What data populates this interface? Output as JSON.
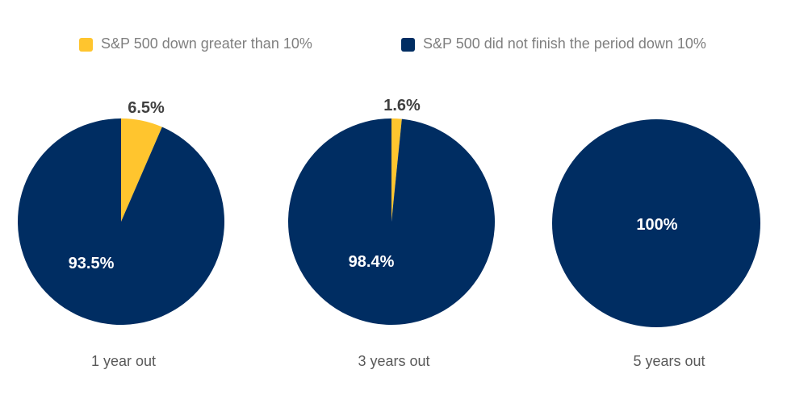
{
  "chart_data": {
    "type": "pie",
    "legend": [
      {
        "label": "S&P 500 down greater than 10%",
        "color": "#FFC52E"
      },
      {
        "label": "S&P 500 did not finish the period down 10%",
        "color": "#002D62"
      }
    ],
    "pies": [
      {
        "caption": "1 year out",
        "slices": [
          {
            "series": "S&P 500 down greater than 10%",
            "value": 6.5,
            "label": "6.5%"
          },
          {
            "series": "S&P 500 did not finish the period down 10%",
            "value": 93.5,
            "label": "93.5%"
          }
        ]
      },
      {
        "caption": "3 years out",
        "slices": [
          {
            "series": "S&P 500 down greater than 10%",
            "value": 1.6,
            "label": "1.6%"
          },
          {
            "series": "S&P 500 did not finish the period down 10%",
            "value": 98.4,
            "label": "98.4%"
          }
        ]
      },
      {
        "caption": "5 years out",
        "slices": [
          {
            "series": "S&P 500 did not finish the period down 10%",
            "value": 100,
            "label": "100%"
          }
        ]
      }
    ]
  }
}
